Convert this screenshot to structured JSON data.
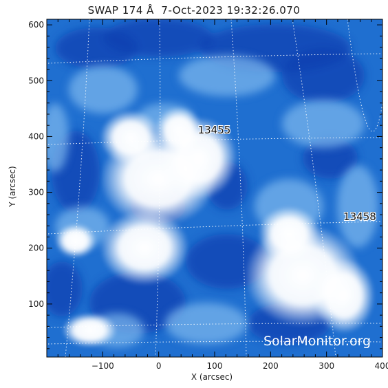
{
  "title": "SWAP 174 Å  7-Oct-2023 19:32:26.070",
  "watermark": "SolarMonitor.org",
  "axes": {
    "xlabel": "X (arcsec)",
    "ylabel": "Y (arcsec)",
    "xlim": [
      -200,
      400
    ],
    "ylim": [
      5,
      610
    ],
    "xticks": [
      -100,
      0,
      100,
      200,
      300,
      400
    ],
    "yticks": [
      100,
      200,
      300,
      400,
      500,
      600
    ]
  },
  "active_regions": [
    {
      "label": "13455",
      "x": 70,
      "y": 410
    },
    {
      "label": "13458",
      "x": 330,
      "y": 255
    }
  ],
  "colors": {
    "dark_blue": "#0a3fb0",
    "mid_blue": "#1f78d8",
    "light_blue": "#8cc3f2",
    "bright": "#ffffff",
    "grid": "#ffffff"
  }
}
